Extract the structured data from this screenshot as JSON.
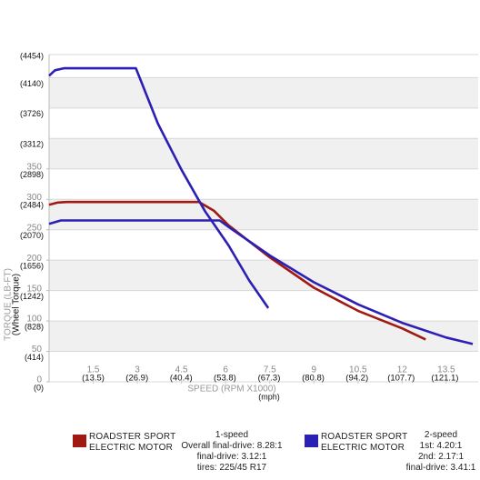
{
  "chart_data": {
    "type": "line",
    "xlabel": "SPEED (RPM X1000)",
    "x2label": "(mph)",
    "ylabel": "(Wheel Torque)",
    "y2label": "TORQUE (LB-FT)",
    "xlim": [
      0,
      14.4
    ],
    "xticks": [
      1.5,
      3.0,
      4.5,
      6.0,
      7.5,
      9.0,
      10.5,
      12.0,
      13.5
    ],
    "x2lim": [
      0,
      129.6
    ],
    "x2ticks": [
      {
        "value": 13.5,
        "label": "(13.5)"
      },
      {
        "value": 26.9,
        "label": "(26.9)"
      },
      {
        "value": 40.4,
        "label": "(40.4)"
      },
      {
        "value": 53.8,
        "label": "(53.8)"
      },
      {
        "value": 67.3,
        "label": "(67.3)"
      },
      {
        "value": 80.8,
        "label": "(80.8)"
      },
      {
        "value": 94.2,
        "label": "(94.2)"
      },
      {
        "value": 107.7,
        "label": "(107.7)"
      },
      {
        "value": 121.1,
        "label": "(121.1)"
      }
    ],
    "ylim": [
      0,
      4454
    ],
    "yticks": [
      {
        "value": 0,
        "label": "(0)"
      },
      {
        "value": 414,
        "label": "(414)"
      },
      {
        "value": 828,
        "label": "(828)"
      },
      {
        "value": 1242,
        "label": "(1242)"
      },
      {
        "value": 1656,
        "label": "(1656)"
      },
      {
        "value": 2070,
        "label": "(2070)"
      },
      {
        "value": 2484,
        "label": "(2484)"
      },
      {
        "value": 2898,
        "label": "(2898)"
      },
      {
        "value": 3312,
        "label": "(3312)"
      },
      {
        "value": 3726,
        "label": "(3726)"
      },
      {
        "value": 4140,
        "label": "(4140)"
      },
      {
        "value": 4454,
        "label": "(4454)"
      }
    ],
    "y2lim": [
      0,
      538
    ],
    "y2ticks": [
      0,
      50,
      100,
      150,
      200,
      250,
      300,
      350
    ],
    "grid": true,
    "banded": true,
    "series": [
      {
        "name": "ROADSTER SPORT ELECTRIC MOTOR",
        "color": "#a11a12",
        "notes": [
          "1-speed",
          "Overall final-drive: 8.28:1",
          "final-drive: 3.12:1",
          "tires: 225/45 R17"
        ],
        "x": [
          0,
          0.3,
          0.6,
          5.1,
          5.6,
          6.1,
          7.5,
          9.0,
          10.5,
          12.0,
          12.8
        ],
        "values": [
          2410,
          2440,
          2447,
          2447,
          2330,
          2130,
          1694,
          1280,
          966,
          728,
          577
        ]
      },
      {
        "name": "ROADSTER SPORT ELECTRIC MOTOR",
        "color": "#2b1fb4",
        "notes": [
          "2-speed",
          "1st: 4.20:1",
          "2nd: 2.17:1",
          "final-drive: 3.41:1"
        ],
        "x": [
          0,
          0.2,
          0.5,
          2.95,
          3.7,
          4.5,
          5.3,
          6.1,
          6.8,
          7.45
        ],
        "values": [
          4166,
          4240,
          4267,
          4267,
          3514,
          2886,
          2322,
          1857,
          1380,
          1004
        ]
      },
      {
        "color": "#2b1fb4",
        "x": [
          0,
          0.4,
          5.8,
          6.1,
          7.5,
          9.0,
          10.5,
          12.0,
          13.5,
          14.4
        ],
        "values": [
          2150,
          2196,
          2196,
          2108,
          1720,
          1355,
          1054,
          803,
          602,
          515
        ]
      }
    ]
  }
}
